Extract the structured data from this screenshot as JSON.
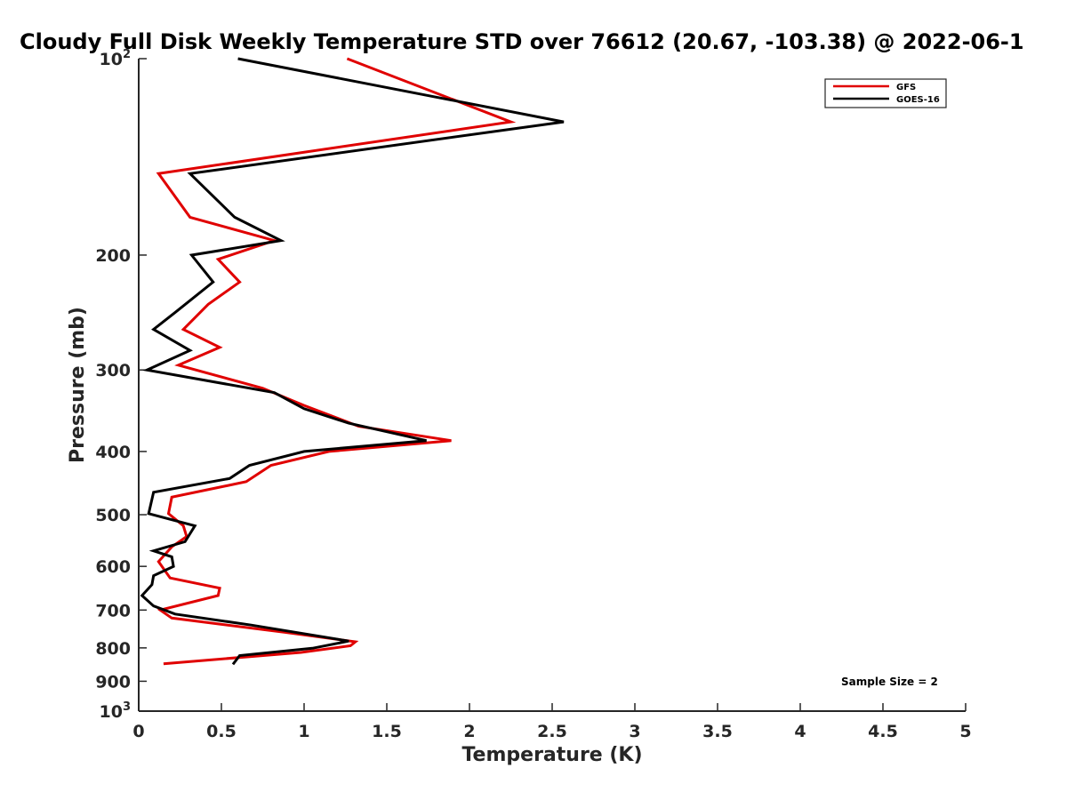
{
  "chart_data": {
    "type": "line",
    "title": "Cloudy Full Disk Weekly Temperature STD over 76612 (20.67, -103.38) @ 2022-06-1",
    "xlabel": "Temperature (K)",
    "ylabel": "Pressure (mb)",
    "xlim": [
      0,
      5
    ],
    "ylim": [
      100,
      1000
    ],
    "y_scale": "log",
    "y_reversed": true,
    "x_ticks": [
      "0",
      "0.5",
      "1",
      "1.5",
      "2",
      "2.5",
      "3",
      "3.5",
      "4",
      "4.5",
      "5"
    ],
    "y_ticks": [
      {
        "value": 100,
        "base": "10",
        "exp": "2"
      },
      {
        "value": 200,
        "label": "200"
      },
      {
        "value": 300,
        "label": "300"
      },
      {
        "value": 400,
        "label": "400"
      },
      {
        "value": 500,
        "label": "500"
      },
      {
        "value": 600,
        "label": "600"
      },
      {
        "value": 700,
        "label": "700"
      },
      {
        "value": 800,
        "label": "800"
      },
      {
        "value": 900,
        "label": "900"
      },
      {
        "value": 1000,
        "base": "10",
        "exp": "3"
      }
    ],
    "grid": false,
    "legend_position": "top-right",
    "annotation": "Sample Size = 2",
    "series": [
      {
        "name": "GFS",
        "color": "#e00000",
        "points": [
          [
            1.26,
            100
          ],
          [
            2.25,
            125
          ],
          [
            0.12,
            150
          ],
          [
            0.31,
            175
          ],
          [
            0.82,
            190
          ],
          [
            0.48,
            203
          ],
          [
            0.61,
            220
          ],
          [
            0.42,
            238
          ],
          [
            0.27,
            260
          ],
          [
            0.49,
            277
          ],
          [
            0.24,
            295
          ],
          [
            0.75,
            320
          ],
          [
            1.0,
            340
          ],
          [
            1.33,
            366
          ],
          [
            1.89,
            385
          ],
          [
            1.15,
            400
          ],
          [
            0.8,
            420
          ],
          [
            0.65,
            445
          ],
          [
            0.2,
            470
          ],
          [
            0.18,
            498
          ],
          [
            0.27,
            520
          ],
          [
            0.29,
            540
          ],
          [
            0.2,
            560
          ],
          [
            0.12,
            590
          ],
          [
            0.19,
            625
          ],
          [
            0.49,
            648
          ],
          [
            0.48,
            665
          ],
          [
            0.13,
            700
          ],
          [
            0.2,
            720
          ],
          [
            0.88,
            757
          ],
          [
            1.31,
            783
          ],
          [
            1.28,
            794
          ],
          [
            0.98,
            813
          ],
          [
            0.15,
            846
          ]
        ]
      },
      {
        "name": "GOES-16",
        "color": "#000000",
        "points": [
          [
            0.6,
            100
          ],
          [
            2.57,
            125
          ],
          [
            0.31,
            150
          ],
          [
            0.58,
            175
          ],
          [
            0.86,
            190
          ],
          [
            0.32,
            200
          ],
          [
            0.45,
            220
          ],
          [
            0.22,
            245
          ],
          [
            0.09,
            260
          ],
          [
            0.31,
            280
          ],
          [
            0.05,
            300
          ],
          [
            0.82,
            325
          ],
          [
            1.0,
            344
          ],
          [
            1.27,
            362
          ],
          [
            1.74,
            385
          ],
          [
            1.0,
            400
          ],
          [
            0.67,
            420
          ],
          [
            0.55,
            440
          ],
          [
            0.09,
            462
          ],
          [
            0.06,
            498
          ],
          [
            0.34,
            520
          ],
          [
            0.28,
            550
          ],
          [
            0.09,
            568
          ],
          [
            0.2,
            580
          ],
          [
            0.21,
            600
          ],
          [
            0.09,
            620
          ],
          [
            0.08,
            640
          ],
          [
            0.02,
            665
          ],
          [
            0.09,
            690
          ],
          [
            0.22,
            710
          ],
          [
            0.68,
            738
          ],
          [
            1.27,
            781
          ],
          [
            1.05,
            801
          ],
          [
            0.61,
            822
          ],
          [
            0.57,
            848
          ]
        ]
      }
    ]
  }
}
